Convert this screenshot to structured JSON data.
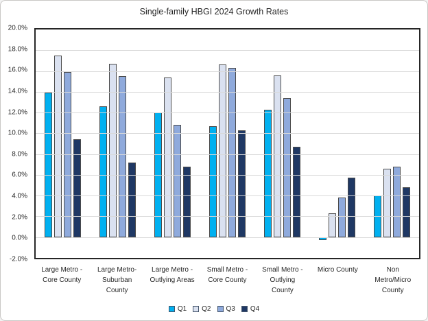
{
  "title": "Single-family HBGI 2024 Growth Rates",
  "chart_data": {
    "type": "bar",
    "title": "Single-family HBGI 2024 Growth Rates",
    "categories": [
      "Large Metro - Core County",
      "Large Metro- Suburban County",
      "Large Metro - Outlying Areas",
      "Small Metro - Core County",
      "Small Metro - Outlying County",
      "Micro County",
      "Non Metro/Micro County"
    ],
    "category_lines": [
      [
        "Large Metro -",
        "Core County"
      ],
      [
        "Large Metro-",
        "Suburban",
        "County"
      ],
      [
        "Large Metro -",
        "Outlying Areas"
      ],
      [
        "Small Metro -",
        "Core County"
      ],
      [
        "Small Metro -",
        "Outlying",
        "County"
      ],
      [
        "Micro County"
      ],
      [
        "Non",
        "Metro/Micro",
        "County"
      ]
    ],
    "series": [
      {
        "name": "Q1",
        "color": "#00B0F0",
        "values": [
          13.9,
          12.6,
          12.0,
          10.7,
          12.3,
          -0.3,
          4.0
        ]
      },
      {
        "name": "Q2",
        "color": "#DAE1F0",
        "values": [
          17.5,
          16.7,
          15.4,
          16.6,
          15.6,
          2.3,
          6.6
        ]
      },
      {
        "name": "Q3",
        "color": "#8FAADC",
        "values": [
          15.9,
          15.5,
          10.8,
          16.3,
          13.4,
          3.8,
          6.8
        ]
      },
      {
        "name": "Q4",
        "color": "#1F3864",
        "values": [
          9.4,
          7.2,
          6.8,
          10.3,
          8.7,
          5.7,
          4.8
        ]
      }
    ],
    "ylim": [
      -2,
      20
    ],
    "ytick_step": 2,
    "ytick_labels": [
      "20.0%",
      "18.0%",
      "16.0%",
      "14.0%",
      "12.0%",
      "10.0%",
      "8.0%",
      "6.0%",
      "4.0%",
      "2.0%",
      "0.0%",
      "-2.0%"
    ],
    "grid": true,
    "legend_position": "bottom"
  },
  "colors": {
    "q1": "#00B0F0",
    "q2": "#DAE1F0",
    "q3": "#8FAADC",
    "q4": "#1F3864",
    "gridline": "#d9d9d9",
    "plot_border": "#262626",
    "text": "#262626",
    "frame_border": "#c9c7c5",
    "background": "#ffffff"
  }
}
